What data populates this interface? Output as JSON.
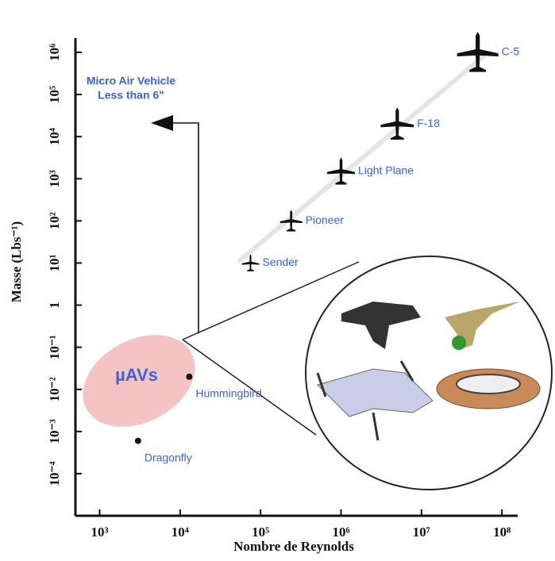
{
  "chart_data": {
    "type": "scatter",
    "xlabel": "Nombre de Reynolds",
    "ylabel": "Masse (Lbs⁻¹)",
    "annotations": [
      "Micro Air Vehicle",
      "Less than 6\""
    ],
    "region_label": "µAVs",
    "log_x": true,
    "log_y": true,
    "xlim": [
      500,
      150000000
    ],
    "ylim": [
      1e-05,
      2000000
    ],
    "xticks": [
      {
        "value": 1000,
        "label": "10³"
      },
      {
        "value": 10000,
        "label": "10⁴"
      },
      {
        "value": 100000,
        "label": "10⁵"
      },
      {
        "value": 1000000,
        "label": "10⁶"
      },
      {
        "value": 10000000,
        "label": "10⁷"
      },
      {
        "value": 100000000,
        "label": "10⁸"
      }
    ],
    "yticks": [
      {
        "value": 0.0001,
        "label": "10⁻⁴"
      },
      {
        "value": 0.001,
        "label": "10⁻³"
      },
      {
        "value": 0.01,
        "label": "10⁻²"
      },
      {
        "value": 0.1,
        "label": "10⁻¹"
      },
      1,
      {
        "value": 10,
        "label": "10¹"
      },
      {
        "value": 100,
        "label": "10²"
      },
      {
        "value": 1000,
        "label": "10³"
      },
      {
        "value": 10000,
        "label": "10⁴"
      },
      {
        "value": 100000,
        "label": "10⁵"
      },
      {
        "value": 1000000,
        "label": "10⁶"
      }
    ],
    "x": [
      3000,
      13000,
      75000,
      240000,
      1000000,
      5000000,
      50000000
    ],
    "values": [
      0.0006,
      0.02,
      10,
      100,
      1500,
      20000,
      1000000
    ],
    "point_labels": [
      "Dragonfly",
      "Hummingbird",
      "Sender",
      "Pioneer",
      "Light Plane",
      "F-18",
      "C-5"
    ],
    "markers": [
      "dot",
      "dot",
      "plane",
      "plane",
      "plane",
      "plane",
      "plane"
    ],
    "color": "#111111",
    "label_color": "#3a63d8"
  }
}
